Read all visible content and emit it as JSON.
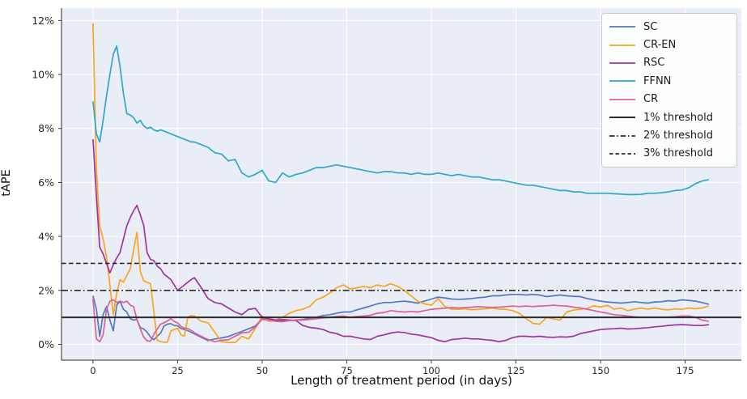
{
  "figure": {
    "xlabel": "Length of treatment period (in days)",
    "ylabel": "tAPE",
    "background_color": "#ffffff",
    "plot_background_color": "#e9edf5",
    "grid_color": "#ffffff",
    "tick_color": "#262626",
    "spine_color": "#2b2b2b"
  },
  "axes": {
    "x_tick_values": [
      0,
      25,
      50,
      75,
      100,
      125,
      150,
      175
    ],
    "x_tick_labels": [
      "0",
      "25",
      "50",
      "75",
      "100",
      "125",
      "150",
      "175"
    ],
    "y_tick_values": [
      0,
      2,
      4,
      6,
      8,
      10,
      12
    ],
    "y_tick_labels": [
      "0%",
      "2%",
      "4%",
      "6%",
      "8%",
      "10%",
      "12%"
    ],
    "xlim": [
      -9.3,
      191.6
    ],
    "ylim": [
      -0.585,
      12.46
    ]
  },
  "chart_data": {
    "type": "line",
    "title": "",
    "xlabel": "Length of treatment period (in days)",
    "ylabel": "tAPE",
    "y_unit": "percent",
    "grid": true,
    "legend_position": "upper right",
    "x": [
      0,
      1,
      2,
      3,
      4,
      5,
      6,
      7,
      8,
      9,
      10,
      11,
      12,
      13,
      14,
      15,
      16,
      17,
      18,
      19,
      20,
      21,
      22,
      23,
      24,
      25,
      26,
      27,
      28,
      29,
      30,
      32,
      34,
      36,
      38,
      40,
      42,
      44,
      46,
      48,
      50,
      52,
      54,
      56,
      58,
      60,
      62,
      64,
      66,
      68,
      70,
      72,
      74,
      76,
      78,
      80,
      82,
      84,
      86,
      88,
      90,
      92,
      94,
      96,
      98,
      100,
      102,
      104,
      106,
      108,
      110,
      112,
      114,
      116,
      118,
      120,
      122,
      124,
      126,
      128,
      130,
      132,
      134,
      136,
      138,
      140,
      142,
      144,
      146,
      148,
      150,
      152,
      154,
      156,
      158,
      160,
      162,
      164,
      166,
      168,
      170,
      172,
      174,
      176,
      178,
      180,
      182
    ],
    "series": [
      {
        "name": "SC",
        "color": "#5277c8",
        "values": [
          1.8,
          1.3,
          0.3,
          1.1,
          1.4,
          0.9,
          0.5,
          1.45,
          1.6,
          1.3,
          1.2,
          0.95,
          0.9,
          0.92,
          0.62,
          0.57,
          0.45,
          0.27,
          0.17,
          0.3,
          0.42,
          0.68,
          0.75,
          0.77,
          0.7,
          0.69,
          0.59,
          0.55,
          0.51,
          0.45,
          0.39,
          0.26,
          0.14,
          0.2,
          0.24,
          0.29,
          0.39,
          0.48,
          0.58,
          0.68,
          0.97,
          0.94,
          0.9,
          0.87,
          0.88,
          0.9,
          0.92,
          0.97,
          1.0,
          1.07,
          1.1,
          1.15,
          1.2,
          1.2,
          1.28,
          1.35,
          1.42,
          1.5,
          1.55,
          1.55,
          1.58,
          1.6,
          1.57,
          1.53,
          1.6,
          1.68,
          1.75,
          1.72,
          1.68,
          1.67,
          1.68,
          1.7,
          1.73,
          1.75,
          1.8,
          1.8,
          1.83,
          1.85,
          1.85,
          1.83,
          1.85,
          1.83,
          1.77,
          1.8,
          1.83,
          1.8,
          1.78,
          1.77,
          1.7,
          1.65,
          1.6,
          1.57,
          1.55,
          1.53,
          1.55,
          1.58,
          1.55,
          1.53,
          1.57,
          1.58,
          1.62,
          1.6,
          1.65,
          1.63,
          1.6,
          1.55,
          1.48
        ]
      },
      {
        "name": "CR-EN",
        "color": "#fca321",
        "values": [
          11.9,
          6.5,
          4.4,
          3.9,
          3.25,
          2.2,
          1.1,
          1.9,
          2.4,
          2.3,
          2.55,
          2.8,
          3.5,
          4.15,
          2.7,
          2.35,
          2.3,
          2.25,
          1.2,
          0.15,
          0.1,
          0.08,
          0.08,
          0.5,
          0.55,
          0.6,
          0.35,
          0.3,
          1.0,
          1.07,
          1.05,
          0.85,
          0.8,
          0.45,
          0.1,
          0.07,
          0.07,
          0.3,
          0.2,
          0.6,
          1.05,
          0.85,
          0.9,
          1.0,
          1.15,
          1.25,
          1.3,
          1.4,
          1.65,
          1.75,
          1.9,
          2.1,
          2.2,
          2.05,
          2.1,
          2.15,
          2.1,
          2.2,
          2.15,
          2.25,
          2.15,
          2.0,
          1.8,
          1.6,
          1.5,
          1.45,
          1.7,
          1.4,
          1.3,
          1.3,
          1.32,
          1.28,
          1.3,
          1.32,
          1.35,
          1.3,
          1.3,
          1.25,
          1.15,
          0.95,
          0.78,
          0.75,
          1.0,
          0.95,
          0.9,
          1.2,
          1.27,
          1.3,
          1.33,
          1.43,
          1.38,
          1.45,
          1.3,
          1.35,
          1.25,
          1.3,
          1.35,
          1.3,
          1.35,
          1.3,
          1.28,
          1.32,
          1.3,
          1.35,
          1.32,
          1.35,
          1.42
        ]
      },
      {
        "name": "RSC",
        "color": "#a132a0",
        "values": [
          7.6,
          5.5,
          3.6,
          3.35,
          3.0,
          2.65,
          2.95,
          3.2,
          3.4,
          3.9,
          4.4,
          4.7,
          4.95,
          5.15,
          4.8,
          4.4,
          3.4,
          3.15,
          3.1,
          2.9,
          2.8,
          2.6,
          2.5,
          2.4,
          2.2,
          2.0,
          2.1,
          2.2,
          2.3,
          2.4,
          2.47,
          2.1,
          1.7,
          1.55,
          1.5,
          1.35,
          1.2,
          1.1,
          1.3,
          1.33,
          1.0,
          0.95,
          0.9,
          0.92,
          0.9,
          0.88,
          0.7,
          0.63,
          0.6,
          0.55,
          0.45,
          0.4,
          0.3,
          0.3,
          0.25,
          0.2,
          0.18,
          0.3,
          0.35,
          0.42,
          0.46,
          0.44,
          0.38,
          0.35,
          0.3,
          0.25,
          0.15,
          0.1,
          0.18,
          0.2,
          0.23,
          0.2,
          0.2,
          0.17,
          0.15,
          0.1,
          0.15,
          0.25,
          0.3,
          0.3,
          0.28,
          0.3,
          0.27,
          0.26,
          0.28,
          0.27,
          0.3,
          0.4,
          0.45,
          0.5,
          0.55,
          0.57,
          0.58,
          0.6,
          0.57,
          0.58,
          0.6,
          0.62,
          0.65,
          0.67,
          0.7,
          0.72,
          0.73,
          0.72,
          0.7,
          0.7,
          0.73
        ]
      },
      {
        "name": "FFNN",
        "color": "#2aa8d0",
        "values": [
          9.0,
          7.8,
          7.5,
          8.3,
          9.2,
          10.0,
          10.75,
          11.05,
          10.3,
          9.3,
          8.55,
          8.5,
          8.4,
          8.2,
          8.3,
          8.1,
          8.0,
          8.05,
          7.95,
          7.9,
          7.95,
          7.9,
          7.85,
          7.8,
          7.75,
          7.7,
          7.65,
          7.6,
          7.55,
          7.5,
          7.5,
          7.4,
          7.3,
          7.1,
          7.05,
          6.8,
          6.85,
          6.35,
          6.2,
          6.3,
          6.45,
          6.05,
          6.0,
          6.35,
          6.2,
          6.3,
          6.35,
          6.45,
          6.55,
          6.55,
          6.6,
          6.65,
          6.6,
          6.55,
          6.5,
          6.45,
          6.4,
          6.35,
          6.4,
          6.4,
          6.35,
          6.35,
          6.3,
          6.35,
          6.3,
          6.3,
          6.35,
          6.3,
          6.25,
          6.3,
          6.25,
          6.2,
          6.2,
          6.15,
          6.1,
          6.1,
          6.05,
          6.0,
          5.95,
          5.9,
          5.9,
          5.85,
          5.8,
          5.75,
          5.7,
          5.7,
          5.65,
          5.65,
          5.6,
          5.6,
          5.6,
          5.6,
          5.58,
          5.57,
          5.55,
          5.55,
          5.56,
          5.6,
          5.6,
          5.62,
          5.65,
          5.7,
          5.72,
          5.8,
          5.95,
          6.05,
          6.1
        ]
      },
      {
        "name": "CR",
        "color": "#e0608e",
        "values": [
          1.7,
          0.2,
          0.1,
          0.35,
          1.3,
          1.6,
          1.65,
          1.55,
          1.6,
          1.55,
          1.6,
          1.45,
          1.4,
          0.92,
          0.57,
          0.27,
          0.13,
          0.12,
          0.38,
          0.57,
          0.75,
          0.8,
          0.87,
          0.95,
          0.85,
          0.8,
          0.67,
          0.6,
          0.59,
          0.52,
          0.43,
          0.3,
          0.18,
          0.1,
          0.15,
          0.17,
          0.3,
          0.43,
          0.45,
          0.65,
          0.93,
          0.9,
          0.85,
          0.84,
          0.88,
          0.9,
          0.9,
          0.92,
          0.95,
          0.98,
          1.0,
          1.03,
          1.05,
          1.0,
          1.03,
          1.05,
          1.08,
          1.15,
          1.18,
          1.25,
          1.22,
          1.2,
          1.22,
          1.2,
          1.25,
          1.3,
          1.32,
          1.34,
          1.36,
          1.35,
          1.36,
          1.38,
          1.4,
          1.38,
          1.37,
          1.38,
          1.4,
          1.42,
          1.4,
          1.42,
          1.4,
          1.42,
          1.43,
          1.45,
          1.43,
          1.42,
          1.38,
          1.35,
          1.3,
          1.25,
          1.2,
          1.15,
          1.1,
          1.08,
          1.05,
          1.02,
          1.0,
          1.0,
          1.0,
          1.0,
          1.0,
          1.02,
          1.05,
          1.05,
          1.0,
          0.9,
          0.85
        ]
      }
    ],
    "thresholds": [
      {
        "label": "1% threshold",
        "value": 1,
        "style": "solid",
        "color": "#2b2b2b"
      },
      {
        "label": "2% threshold",
        "value": 2,
        "style": "dashdot",
        "color": "#2b2b2b"
      },
      {
        "label": "3% threshold",
        "value": 3,
        "style": "dashed",
        "color": "#2b2b2b"
      }
    ]
  }
}
